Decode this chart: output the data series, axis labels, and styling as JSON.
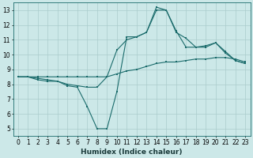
{
  "xlabel": "Humidex (Indice chaleur)",
  "bg_color": "#cce8e8",
  "grid_color": "#aacccc",
  "line_color": "#1a6b6b",
  "xlim": [
    -0.5,
    23.5
  ],
  "ylim": [
    4.5,
    13.5
  ],
  "xticks": [
    0,
    1,
    2,
    3,
    4,
    5,
    6,
    7,
    8,
    9,
    10,
    11,
    12,
    13,
    14,
    15,
    16,
    17,
    18,
    19,
    20,
    21,
    22,
    23
  ],
  "yticks": [
    5,
    6,
    7,
    8,
    9,
    10,
    11,
    12,
    13
  ],
  "line1_x": [
    0,
    1,
    2,
    3,
    4,
    5,
    6,
    7,
    8,
    9,
    10,
    11,
    12,
    13,
    14,
    15,
    16,
    17,
    18,
    19,
    20,
    21,
    22,
    23
  ],
  "line1_y": [
    8.5,
    8.5,
    8.5,
    8.5,
    8.5,
    8.5,
    8.5,
    8.5,
    8.5,
    8.5,
    8.7,
    8.9,
    9.0,
    9.2,
    9.4,
    9.5,
    9.5,
    9.6,
    9.7,
    9.7,
    9.8,
    9.8,
    9.7,
    9.5
  ],
  "line2_x": [
    0,
    1,
    2,
    3,
    4,
    5,
    6,
    7,
    8,
    9,
    10,
    11,
    12,
    13,
    14,
    15,
    16,
    17,
    18,
    19,
    20,
    21,
    22,
    23
  ],
  "line2_y": [
    8.5,
    8.5,
    8.3,
    8.2,
    8.2,
    7.9,
    7.8,
    6.5,
    5.0,
    5.0,
    7.5,
    11.2,
    11.2,
    11.5,
    13.0,
    13.0,
    11.5,
    11.1,
    10.5,
    10.6,
    10.8,
    10.1,
    9.6,
    9.4
  ],
  "line3_x": [
    0,
    1,
    2,
    3,
    4,
    5,
    6,
    7,
    8,
    9,
    10,
    11,
    12,
    13,
    14,
    15,
    16,
    17,
    18,
    19,
    20,
    21,
    22,
    23
  ],
  "line3_y": [
    8.5,
    8.5,
    8.4,
    8.3,
    8.2,
    8.0,
    7.9,
    7.8,
    7.8,
    8.5,
    10.3,
    11.0,
    11.2,
    11.5,
    13.2,
    13.0,
    11.6,
    10.5,
    10.5,
    10.5,
    10.8,
    10.2,
    9.6,
    9.4
  ]
}
